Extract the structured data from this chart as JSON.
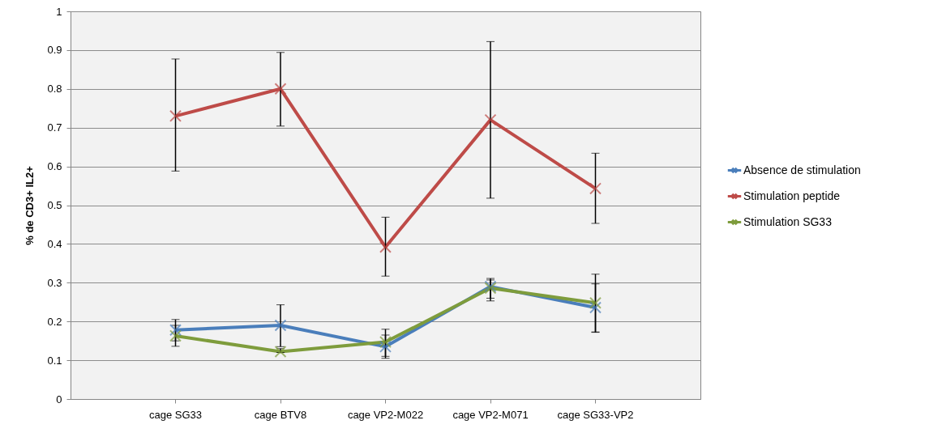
{
  "chart_data": {
    "type": "line",
    "ylabel": "% de CD3+ IL2+",
    "categories": [
      "cage SG33",
      "cage BTV8",
      "cage VP2-M022",
      "cage VP2-M071",
      "cage SG33-VP2"
    ],
    "series": [
      {
        "name": "Absence de stimulation",
        "color": "#4a7ebb",
        "values": [
          0.178,
          0.19,
          0.135,
          0.29,
          0.236
        ],
        "errors": [
          [
            0.15,
            0.205
          ],
          [
            0.135,
            0.243
          ],
          [
            0.105,
            0.165
          ],
          [
            0.253,
            0.307
          ],
          [
            0.172,
            0.297
          ]
        ]
      },
      {
        "name": "Stimulation peptide",
        "color": "#be4b48",
        "values": [
          0.73,
          0.8,
          0.392,
          0.72,
          0.543
        ],
        "errors": [
          [
            0.588,
            0.877
          ],
          [
            0.704,
            0.894
          ],
          [
            0.317,
            0.469
          ],
          [
            0.518,
            0.922
          ],
          [
            0.453,
            0.634
          ]
        ]
      },
      {
        "name": "Stimulation SG33",
        "color": "#7e9c3c",
        "values": [
          0.163,
          0.122,
          0.147,
          0.286,
          0.248
        ],
        "errors": [
          [
            0.136,
            0.19
          ],
          [
            0.12,
            0.13
          ],
          [
            0.11,
            0.18
          ],
          [
            0.26,
            0.311
          ],
          [
            0.173,
            0.322
          ]
        ]
      }
    ],
    "ylim": [
      0,
      1
    ],
    "yticks": [
      0,
      0.1,
      0.2,
      0.3,
      0.4,
      0.5,
      0.6,
      0.7,
      0.8,
      0.9,
      1
    ],
    "grid": "y",
    "legend": "right",
    "marker": "cross",
    "line_style": "solid"
  }
}
